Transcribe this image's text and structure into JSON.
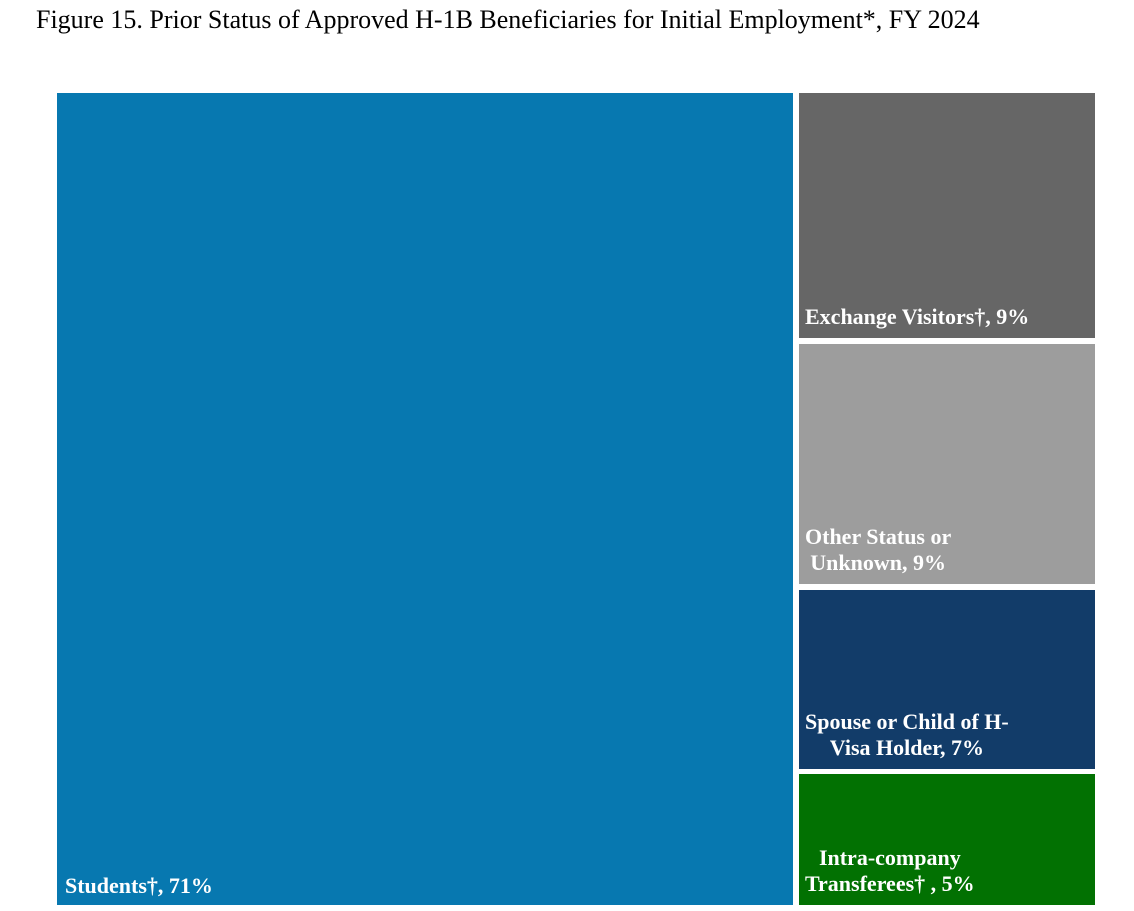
{
  "figure": {
    "title": "Figure 15. Prior Status of Approved H-1B Beneficiaries for Initial Employment*, FY 2024"
  },
  "chart_data": {
    "type": "treemap",
    "title": "Figure 15. Prior Status of Approved H-1B Beneficiaries for Initial Employment*, FY 2024",
    "unit": "percent",
    "legend": "none",
    "layout": "single large tile on left (71%); column of four stacked tiles on right (9%, 9%, 7%, 5%)",
    "label_text_color": "#FFFFFF",
    "series": [
      {
        "name": "Students†",
        "value": 71,
        "label": "Students†, 71%",
        "color": "#0778B0"
      },
      {
        "name": "Exchange Visitors†",
        "value": 9,
        "label": "Exchange Visitors†, 9%",
        "color": "#666666"
      },
      {
        "name": "Other Status or Unknown",
        "value": 9,
        "label": "Other Status or\nUnknown, 9%",
        "color": "#9D9D9D"
      },
      {
        "name": "Spouse or Child of H-Visa Holder",
        "value": 7,
        "label": "Spouse or Child of H-\nVisa Holder, 7%",
        "color": "#123C69"
      },
      {
        "name": "Intra-company Transferees†",
        "value": 5,
        "label": "Intra-company\nTransferees† , 5%",
        "color": "#027102"
      }
    ]
  }
}
